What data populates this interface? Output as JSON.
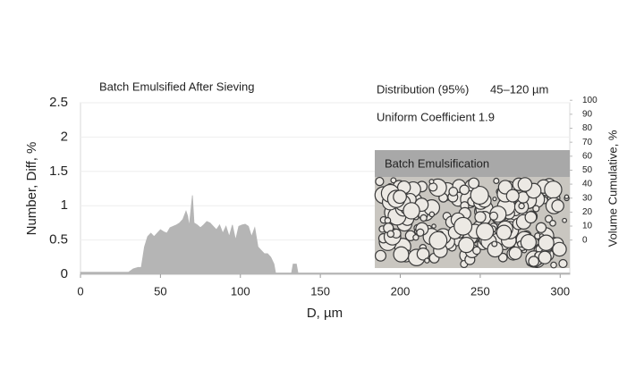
{
  "chart_data": {
    "type": "area",
    "title": "Batch Emulsified After Sieving",
    "x_label": "D, µm",
    "y_label": "Number, Diff, %",
    "y2_label": "Volume Cumulative, %",
    "annotations": [
      "Distribution (95%)",
      "45–120 µm",
      "Uniform Coefficient 1.9"
    ],
    "inset_label": "Batch Emulsification",
    "color": "#b5b5b5",
    "x": [
      0,
      30,
      33,
      36,
      38,
      40,
      42,
      44,
      46,
      48,
      50,
      52,
      54,
      56,
      58,
      60,
      62,
      64,
      66,
      67,
      68,
      70,
      71,
      73,
      75,
      77,
      79,
      81,
      83,
      85,
      87,
      89,
      91,
      93,
      95,
      97,
      99,
      101,
      103,
      105,
      107,
      109,
      111,
      113,
      115,
      117,
      119,
      121,
      122,
      132,
      133,
      135,
      136,
      306
    ],
    "values": [
      0.03,
      0.03,
      0.08,
      0.1,
      0.1,
      0.4,
      0.55,
      0.6,
      0.55,
      0.6,
      0.65,
      0.62,
      0.6,
      0.68,
      0.7,
      0.72,
      0.75,
      0.8,
      0.92,
      0.85,
      0.7,
      1.15,
      0.75,
      0.72,
      0.68,
      0.72,
      0.77,
      0.75,
      0.7,
      0.65,
      0.72,
      0.6,
      0.7,
      0.55,
      0.72,
      0.5,
      0.7,
      0.72,
      0.73,
      0.7,
      0.55,
      0.68,
      0.4,
      0.35,
      0.3,
      0.3,
      0.25,
      0.15,
      0.02,
      0.02,
      0.15,
      0.15,
      0.02,
      0.02
    ],
    "xlim": [
      0,
      306
    ],
    "xticks": [
      0,
      50,
      100,
      150,
      200,
      250,
      300
    ],
    "ylim": [
      0,
      2.5
    ],
    "yticks": [
      0,
      0.5,
      1,
      1.5,
      2,
      2.5
    ],
    "y2lim": [
      -24.5,
      99.5
    ],
    "y2ticks": [
      0,
      10,
      20,
      30,
      40,
      50,
      60,
      70,
      80,
      90,
      100
    ],
    "grid": true
  }
}
